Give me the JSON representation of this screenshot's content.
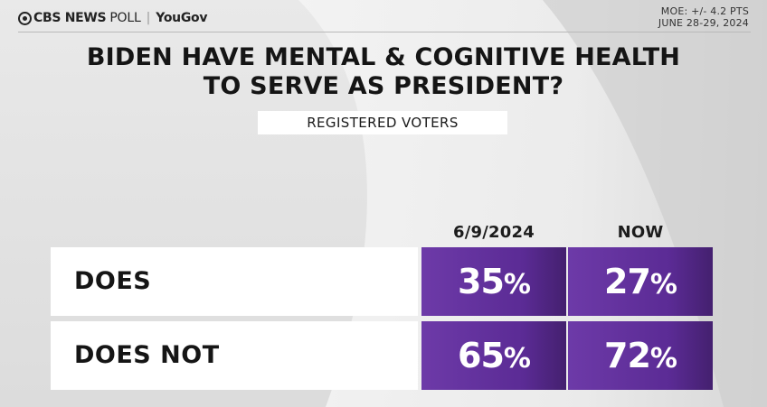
{
  "header": {
    "brand_cbs": "CBS NEWS",
    "brand_poll": "POLL",
    "brand_yougov": "YouGov",
    "moe": "MOE: +/- 4.2 PTS",
    "date": "JUNE 28-29, 2024"
  },
  "title_line1": "BIDEN HAVE MENTAL & COGNITIVE HEALTH",
  "title_line2": "TO SERVE AS PRESIDENT?",
  "subtitle": "REGISTERED VOTERS",
  "chart_data": {
    "type": "table",
    "title": "BIDEN HAVE MENTAL & COGNITIVE HEALTH TO SERVE AS PRESIDENT?",
    "subtitle": "REGISTERED VOTERS",
    "columns": [
      "6/9/2024",
      "NOW"
    ],
    "rows": [
      {
        "label": "DOES",
        "values": [
          "35",
          "27"
        ]
      },
      {
        "label": "DOES NOT",
        "values": [
          "65",
          "72"
        ]
      }
    ],
    "unit": "%",
    "colors": {
      "cell": "#5b2b95",
      "label_bg": "#ffffff"
    }
  }
}
